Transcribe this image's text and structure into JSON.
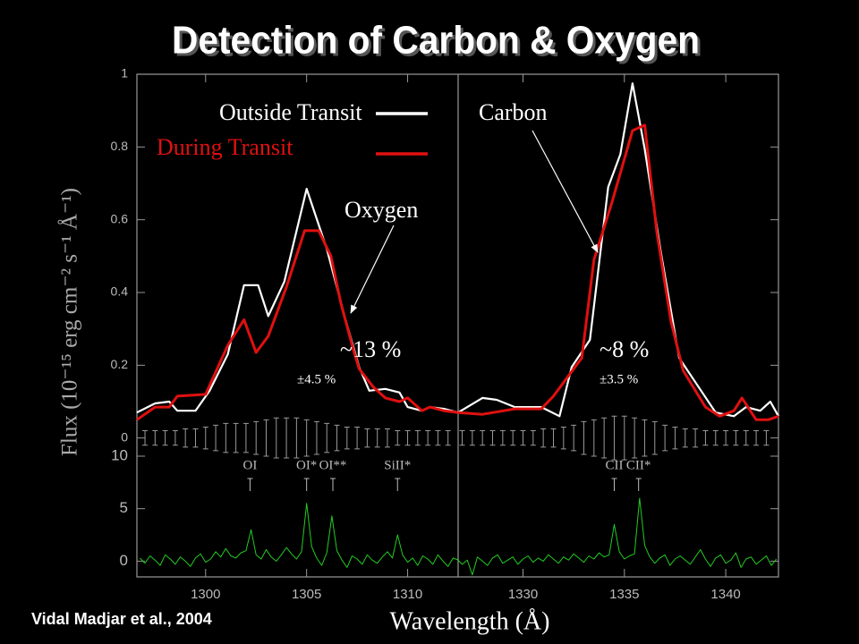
{
  "title": "Detection of Carbon & Oxygen",
  "citation": "Vidal Madjar et al., 2004",
  "chart_data": [
    {
      "type": "line",
      "ylabel": "Flux (10⁻¹⁵ erg cm⁻² s⁻¹ Å⁻¹)",
      "xlabel": "Wavelength (Å)",
      "xlim": [
        1296.6,
        1312.5
      ],
      "xticks": [
        1300,
        1305,
        1310
      ],
      "ylim": [
        -0.05,
        1
      ],
      "yticks": [
        0,
        0.2,
        0.4,
        0.6,
        0.8,
        1
      ],
      "y2lim": [
        -1.5,
        10
      ],
      "y2ticks": [
        0,
        5,
        10
      ],
      "series": [
        {
          "name": "Outside Transit",
          "color": "#ffffff",
          "x": [
            1296.6,
            1297.5,
            1298.2,
            1298.6,
            1299.5,
            1300.2,
            1301.1,
            1301.9,
            1302.6,
            1303.1,
            1303.9,
            1305.0,
            1306.0,
            1306.9,
            1307.6,
            1308.1,
            1308.9,
            1309.6,
            1310.0,
            1310.7,
            1311.1,
            1311.8,
            1312.5
          ],
          "values": [
            0.07,
            0.095,
            0.1,
            0.075,
            0.075,
            0.13,
            0.23,
            0.42,
            0.42,
            0.335,
            0.43,
            0.685,
            0.52,
            0.33,
            0.195,
            0.13,
            0.135,
            0.125,
            0.085,
            0.075,
            0.085,
            0.08,
            0.07
          ]
        },
        {
          "name": "During Transit",
          "color": "#e01010",
          "x": [
            1296.6,
            1297.5,
            1298.2,
            1298.6,
            1300.0,
            1301.1,
            1301.9,
            1302.5,
            1303.1,
            1304.0,
            1304.9,
            1305.6,
            1306.2,
            1306.7,
            1307.3,
            1307.6,
            1308.3,
            1308.9,
            1309.6,
            1310.0,
            1310.7,
            1311.1,
            1311.8,
            1312.5
          ],
          "values": [
            0.05,
            0.085,
            0.085,
            0.115,
            0.12,
            0.255,
            0.325,
            0.235,
            0.28,
            0.415,
            0.57,
            0.57,
            0.5,
            0.37,
            0.245,
            0.19,
            0.14,
            0.11,
            0.1,
            0.11,
            0.075,
            0.085,
            0.075,
            0.07
          ]
        },
        {
          "color": "#22cc22",
          "axis": "y2",
          "x": [
            1296.75,
            1297.0,
            1297.25,
            1297.5,
            1297.75,
            1298.0,
            1298.25,
            1298.5,
            1298.75,
            1299.0,
            1299.25,
            1299.5,
            1299.75,
            1300.0,
            1300.25,
            1300.5,
            1300.75,
            1301.0,
            1301.25,
            1301.5,
            1301.75,
            1302.0,
            1302.25,
            1302.5,
            1302.75,
            1303.0,
            1303.25,
            1303.5,
            1303.75,
            1304.0,
            1304.25,
            1304.5,
            1304.75,
            1305.0,
            1305.25,
            1305.5,
            1305.75,
            1306.0,
            1306.25,
            1306.5,
            1306.75,
            1307.0,
            1307.25,
            1307.5,
            1307.75,
            1308.0,
            1308.25,
            1308.5,
            1308.75,
            1309.0,
            1309.25,
            1309.5,
            1309.75,
            1310.0,
            1310.25,
            1310.5,
            1310.75,
            1311.0,
            1311.25,
            1311.5,
            1311.75,
            1312.0,
            1312.25,
            1312.5
          ],
          "values": [
            0.3,
            -0.2,
            0.5,
            0.1,
            -0.4,
            0.6,
            0.2,
            -0.3,
            0.4,
            0.0,
            -0.5,
            0.3,
            0.7,
            -0.1,
            0.2,
            0.9,
            0.4,
            1.2,
            0.5,
            0.3,
            0.8,
            1.0,
            3.0,
            0.6,
            0.2,
            1.1,
            0.4,
            0.0,
            0.6,
            1.3,
            0.7,
            0.2,
            0.9,
            5.5,
            1.4,
            0.3,
            -0.4,
            0.8,
            4.3,
            1.0,
            0.1,
            -0.6,
            0.5,
            0.2,
            -0.3,
            0.6,
            0.1,
            -0.2,
            0.4,
            0.9,
            0.3,
            2.5,
            0.6,
            -0.1,
            0.3,
            -0.4,
            0.5,
            0.2,
            -0.3,
            0.6,
            0.0,
            -0.5,
            0.3,
            0.1
          ]
        }
      ],
      "error_bars": {
        "center": 0,
        "x": [
          1297.0,
          1297.5,
          1298.0,
          1298.5,
          1299.0,
          1299.5,
          1300.0,
          1300.5,
          1301.0,
          1301.5,
          1302.0,
          1302.5,
          1303.0,
          1303.5,
          1304.0,
          1304.5,
          1305.0,
          1305.5,
          1306.0,
          1306.5,
          1307.0,
          1307.5,
          1308.0,
          1308.5,
          1309.0,
          1309.5,
          1310.0,
          1310.5,
          1311.0,
          1311.5,
          1312.0
        ],
        "errors": [
          0.02,
          0.02,
          0.02,
          0.02,
          0.025,
          0.025,
          0.03,
          0.035,
          0.04,
          0.04,
          0.04,
          0.045,
          0.05,
          0.055,
          0.055,
          0.055,
          0.05,
          0.045,
          0.04,
          0.035,
          0.03,
          0.03,
          0.025,
          0.025,
          0.025,
          0.02,
          0.02,
          0.02,
          0.02,
          0.02,
          0.02
        ]
      },
      "line_ids": [
        {
          "label": "OI",
          "x": 1302.2
        },
        {
          "label": "OI*",
          "x": 1305.0
        },
        {
          "label": "OI**",
          "x": 1306.3
        },
        {
          "label": "SiII*",
          "x": 1309.5
        }
      ],
      "annotations": [
        {
          "text": "Oxygen"
        },
        {
          "text": "~13 %"
        },
        {
          "text": "±4.5 %"
        }
      ]
    },
    {
      "type": "line",
      "xlim": [
        1326.8,
        1342.6
      ],
      "xticks": [
        1330,
        1335,
        1340
      ],
      "ylim": [
        -0.05,
        1
      ],
      "yticks": [
        0,
        0.2,
        0.4,
        0.6,
        0.8,
        1
      ],
      "y2lim": [
        -1.5,
        10
      ],
      "y2ticks": [
        0,
        5,
        10
      ],
      "series": [
        {
          "color": "#ffffff",
          "x": [
            1326.8,
            1328.0,
            1328.7,
            1329.6,
            1330.9,
            1331.8,
            1332.4,
            1333.3,
            1334.2,
            1334.8,
            1335.4,
            1336.0,
            1336.8,
            1337.7,
            1338.6,
            1339.5,
            1340.4,
            1341.0,
            1341.7,
            1342.2,
            1342.6
          ],
          "values": [
            0.07,
            0.11,
            0.105,
            0.085,
            0.085,
            0.06,
            0.195,
            0.27,
            0.69,
            0.78,
            0.975,
            0.795,
            0.51,
            0.22,
            0.145,
            0.07,
            0.06,
            0.085,
            0.075,
            0.1,
            0.06
          ]
        },
        {
          "color": "#e01010",
          "x": [
            1326.8,
            1328.0,
            1329.6,
            1330.9,
            1331.5,
            1332.9,
            1333.5,
            1334.4,
            1335.4,
            1336.0,
            1336.6,
            1337.3,
            1337.9,
            1339.0,
            1339.7,
            1340.4,
            1340.8,
            1341.5,
            1342.1,
            1342.6
          ],
          "values": [
            0.07,
            0.065,
            0.08,
            0.08,
            0.115,
            0.22,
            0.49,
            0.65,
            0.845,
            0.86,
            0.565,
            0.32,
            0.185,
            0.085,
            0.06,
            0.075,
            0.11,
            0.05,
            0.05,
            0.06
          ]
        },
        {
          "color": "#22cc22",
          "axis": "y2",
          "x": [
            1326.75,
            1327.0,
            1327.25,
            1327.5,
            1327.75,
            1328.0,
            1328.25,
            1328.5,
            1328.75,
            1329.0,
            1329.25,
            1329.5,
            1329.75,
            1330.0,
            1330.25,
            1330.5,
            1330.75,
            1331.0,
            1331.25,
            1331.5,
            1331.75,
            1332.0,
            1332.25,
            1332.5,
            1332.75,
            1333.0,
            1333.25,
            1333.5,
            1333.75,
            1334.0,
            1334.25,
            1334.5,
            1334.75,
            1335.0,
            1335.25,
            1335.5,
            1335.75,
            1336.0,
            1336.25,
            1336.5,
            1336.75,
            1337.0,
            1337.25,
            1337.5,
            1337.75,
            1338.0,
            1338.25,
            1338.5,
            1338.75,
            1339.0,
            1339.25,
            1339.5,
            1339.75,
            1340.0,
            1340.25,
            1340.5,
            1340.75,
            1341.0,
            1341.25,
            1341.5,
            1341.75,
            1342.0,
            1342.25,
            1342.5
          ],
          "values": [
            0.2,
            -0.3,
            0.1,
            -1.3,
            0.4,
            0.0,
            -0.4,
            0.3,
            0.6,
            -0.2,
            0.1,
            0.4,
            -0.3,
            0.2,
            0.5,
            -0.1,
            0.3,
            0.0,
            0.6,
            0.2,
            -0.2,
            0.4,
            0.1,
            0.7,
            0.3,
            -0.1,
            0.5,
            0.2,
            0.8,
            0.4,
            0.6,
            3.5,
            0.9,
            0.2,
            0.5,
            0.7,
            6.0,
            1.5,
            0.4,
            -0.2,
            0.3,
            0.6,
            -0.4,
            0.2,
            0.5,
            0.1,
            -0.3,
            0.4,
            1.1,
            0.2,
            -0.5,
            0.3,
            0.6,
            -0.2,
            0.1,
            0.8,
            -0.6,
            0.2,
            0.4,
            -0.3,
            0.1,
            0.5,
            -0.4,
            0.2
          ]
        }
      ],
      "error_bars": {
        "center": 0,
        "x": [
          1327.0,
          1327.5,
          1328.0,
          1328.5,
          1329.0,
          1329.5,
          1330.0,
          1330.5,
          1331.0,
          1331.5,
          1332.0,
          1332.5,
          1333.0,
          1333.5,
          1334.0,
          1334.5,
          1335.0,
          1335.5,
          1336.0,
          1336.5,
          1337.0,
          1337.5,
          1338.0,
          1338.5,
          1339.0,
          1339.5,
          1340.0,
          1340.5,
          1341.0,
          1341.5,
          1342.0
        ],
        "errors": [
          0.02,
          0.02,
          0.02,
          0.02,
          0.02,
          0.02,
          0.02,
          0.02,
          0.025,
          0.025,
          0.03,
          0.035,
          0.045,
          0.05,
          0.055,
          0.06,
          0.06,
          0.055,
          0.05,
          0.045,
          0.035,
          0.03,
          0.025,
          0.025,
          0.02,
          0.02,
          0.02,
          0.02,
          0.02,
          0.02,
          0.02
        ]
      },
      "line_ids": [
        {
          "label": "CII",
          "x": 1334.5
        },
        {
          "label": "CII*",
          "x": 1335.7
        }
      ],
      "annotations": [
        {
          "text": "Carbon"
        },
        {
          "text": "~8 %"
        },
        {
          "text": "±3.5 %"
        }
      ]
    }
  ]
}
